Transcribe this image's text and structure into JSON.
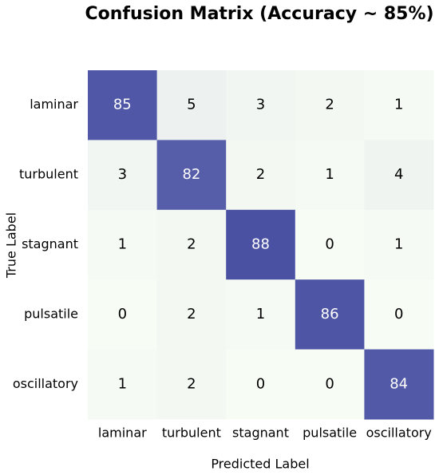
{
  "chart_data": {
    "type": "heatmap",
    "title": "Confusion Matrix (Accuracy ~ 85%)",
    "x_label": "Predicted Label",
    "y_label": "True Label",
    "x_categories": [
      "laminar",
      "turbulent",
      "stagnant",
      "pulsatile",
      "oscillatory"
    ],
    "y_categories": [
      "laminar",
      "turbulent",
      "stagnant",
      "pulsatile",
      "oscillatory"
    ],
    "values": [
      [
        85,
        5,
        3,
        2,
        1
      ],
      [
        3,
        82,
        2,
        1,
        4
      ],
      [
        1,
        2,
        88,
        0,
        1
      ],
      [
        0,
        2,
        1,
        86,
        0
      ],
      [
        1,
        2,
        0,
        0,
        84
      ]
    ],
    "colormap": [
      "#f7fcf5",
      "#4a51a3"
    ]
  }
}
